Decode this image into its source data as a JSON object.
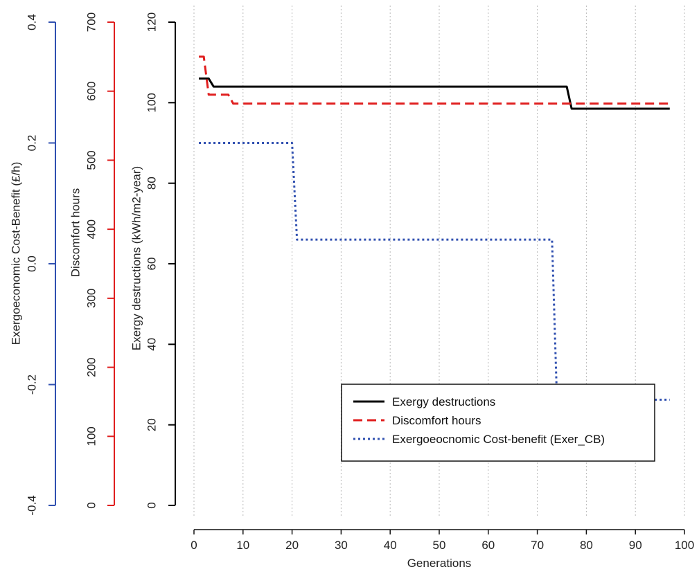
{
  "chart_data": {
    "type": "line",
    "x_axis": {
      "label": "Generations",
      "ticks": [
        0,
        10,
        20,
        30,
        40,
        50,
        60,
        70,
        80,
        90,
        100
      ],
      "lim": [
        0,
        100
      ],
      "grid": "vertical dotted"
    },
    "y_axes": [
      {
        "id": "exergy",
        "label": "Exergy destructions (kWh/m2-year)",
        "ticks": [
          0,
          20,
          40,
          60,
          80,
          100,
          120
        ],
        "lim": [
          0,
          120
        ],
        "color": "#000000"
      },
      {
        "id": "discomfort",
        "label": "Discomfort hours",
        "ticks": [
          0,
          100,
          200,
          300,
          400,
          500,
          600,
          700
        ],
        "lim": [
          0,
          700
        ],
        "color": "#e01e1e"
      },
      {
        "id": "costbenefit",
        "label": "Exergoeconomic Cost-Benefit (£/h)",
        "ticks": [
          "-0.4",
          "-0.2",
          "0.0",
          "0.2",
          "0.4"
        ],
        "lim": [
          -0.4,
          0.4
        ],
        "color": "#3050b0"
      }
    ],
    "series": [
      {
        "name": "Exergy destructions",
        "axis": "exergy",
        "color": "#000000",
        "style": "solid",
        "points": [
          [
            1,
            106
          ],
          [
            3,
            106
          ],
          [
            4,
            104
          ],
          [
            76,
            104
          ],
          [
            77,
            98.5
          ],
          [
            97,
            98.5
          ]
        ]
      },
      {
        "name": "Discomfort hours",
        "axis": "discomfort",
        "color": "#e01e1e",
        "style": "dashed",
        "points": [
          [
            1,
            650
          ],
          [
            2,
            650
          ],
          [
            3,
            595
          ],
          [
            7,
            595
          ],
          [
            8,
            582
          ],
          [
            97,
            582
          ]
        ]
      },
      {
        "name": "Exergoeocnomic Cost-benefit (Exer_CB)",
        "axis": "costbenefit",
        "color": "#3050b0",
        "style": "dotted",
        "points": [
          [
            1,
            0.2
          ],
          [
            20,
            0.2
          ],
          [
            21,
            0.04
          ],
          [
            73,
            0.04
          ],
          [
            74,
            -0.225
          ],
          [
            97,
            -0.225
          ]
        ]
      }
    ],
    "legend": {
      "position": "bottom-right"
    }
  }
}
